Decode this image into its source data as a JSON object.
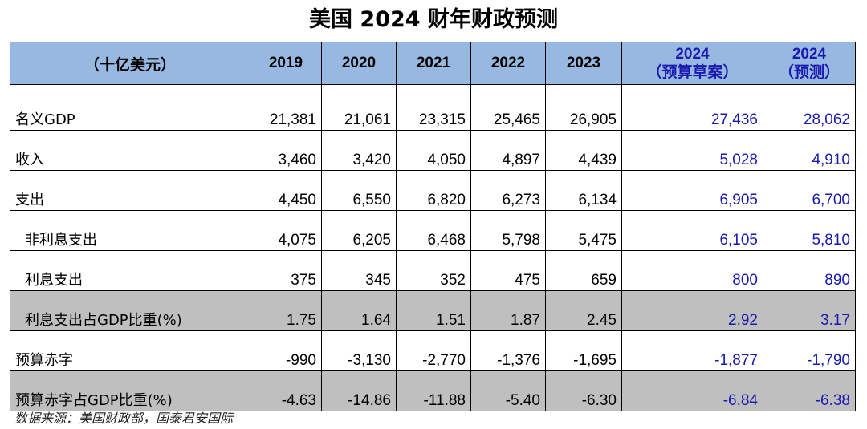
{
  "title": "美国 2024 财年财政预测",
  "table": {
    "header": {
      "unit": "（十亿美元）",
      "years": [
        "2019",
        "2020",
        "2021",
        "2022",
        "2023"
      ],
      "budget_year": "2024",
      "budget_sub": "（预算草案）",
      "forecast_year": "2024",
      "forecast_sub": "（预测）"
    },
    "rows": [
      {
        "label": "名义GDP",
        "values": [
          "21,381",
          "21,061",
          "23,315",
          "25,465",
          "26,905",
          "27,436",
          "28,062"
        ]
      },
      {
        "label": "收入",
        "values": [
          "3,460",
          "3,420",
          "4,050",
          "4,897",
          "4,439",
          "5,028",
          "4,910"
        ]
      },
      {
        "label": "支出",
        "values": [
          "4,450",
          "6,550",
          "6,820",
          "6,273",
          "6,134",
          "6,905",
          "6,700"
        ]
      },
      {
        "label": "非利息支出",
        "values": [
          "4,075",
          "6,205",
          "6,468",
          "5,798",
          "5,475",
          "6,105",
          "5,810"
        ]
      },
      {
        "label": "利息支出",
        "values": [
          "375",
          "345",
          "352",
          "475",
          "659",
          "800",
          "890"
        ]
      },
      {
        "label": "利息支出占GDP比重(%)",
        "values": [
          "1.75",
          "1.64",
          "1.51",
          "1.87",
          "2.45",
          "2.92",
          "3.17"
        ]
      },
      {
        "label": "预算赤字",
        "values": [
          "-990",
          "-3,130",
          "-2,770",
          "-1,376",
          "-1,695",
          "-1,877",
          "-1,790"
        ]
      },
      {
        "label": "预算赤字占GDP比重(%)",
        "values": [
          "-4.63",
          "-14.86",
          "-11.88",
          "-5.40",
          "-6.30",
          "-6.84",
          "-6.38"
        ]
      }
    ]
  },
  "source": "数据来源：美国财政部，国泰君安国际",
  "colors": {
    "header_bg": "#97b8e0",
    "shaded_row": "#bfbfbf",
    "projection_text": "#1a1ab0"
  }
}
